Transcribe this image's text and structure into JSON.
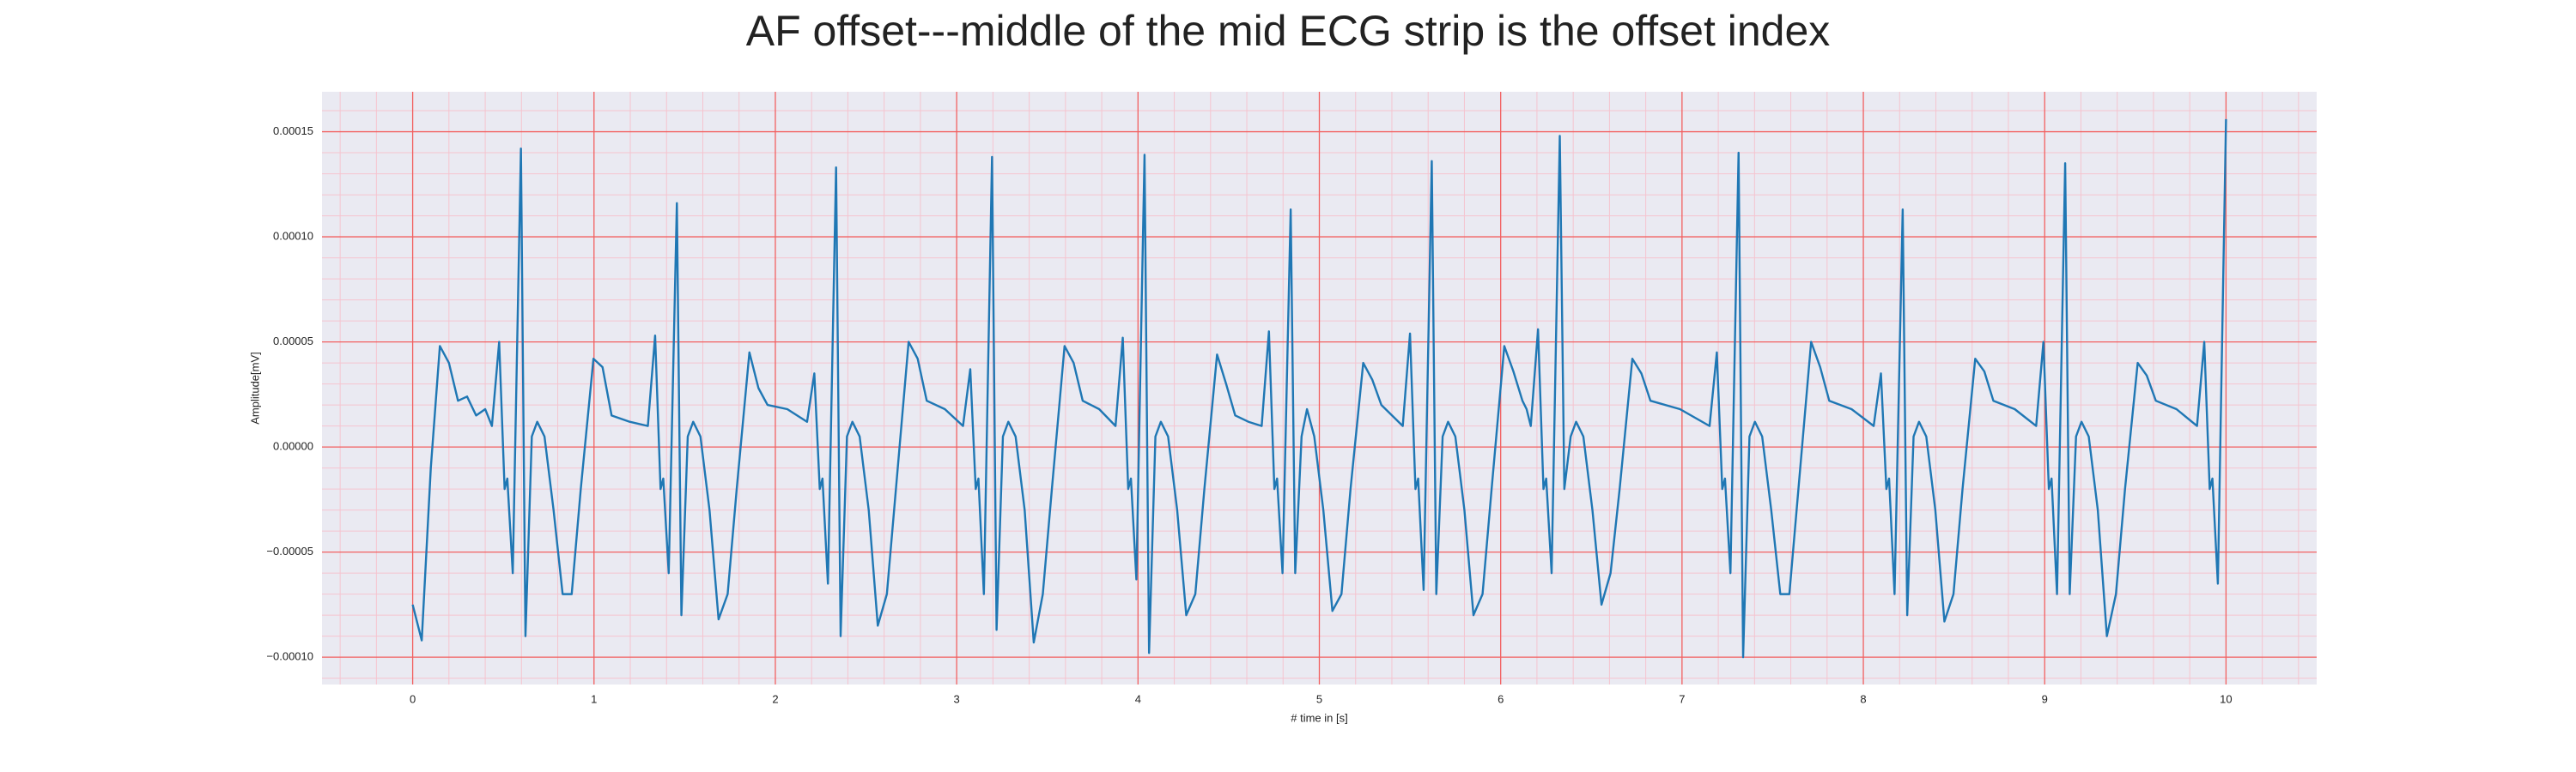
{
  "chart_data": {
    "type": "line",
    "title": "AF offset---middle of the mid ECG strip is the offset index",
    "xlabel": "# time in [s]",
    "ylabel": "Amplitude[mV]",
    "xlim": [
      -0.5,
      10.5
    ],
    "ylim": [
      -0.000113,
      0.000169
    ],
    "xticks": [
      0,
      1,
      2,
      3,
      4,
      5,
      6,
      7,
      8,
      9,
      10
    ],
    "yticks": [
      {
        "value": -0.0001,
        "label": "−0.00010"
      },
      {
        "value": -5e-05,
        "label": "−0.00005"
      },
      {
        "value": 0,
        "label": "0.00000"
      },
      {
        "value": 5e-05,
        "label": "0.00005"
      },
      {
        "value": 0.0001,
        "label": "0.00010"
      },
      {
        "value": 0.00015,
        "label": "0.00015"
      }
    ],
    "grid": true,
    "minor_grid": true,
    "grid_color": "#f26060",
    "minor_grid_color": "#f5c4cf",
    "background": "#eaeaf2",
    "x": [
      0,
      0.05,
      0.1,
      0.15,
      0.2,
      0.25,
      0.3,
      0.35,
      0.4,
      0.437,
      0.477,
      0.507,
      0.522,
      0.552,
      0.597,
      0.622,
      0.657,
      0.687,
      0.727,
      0.777,
      0.827,
      0.877,
      0.927,
      0.997,
      1.047,
      1.097,
      1.197,
      1.297,
      1.337,
      1.367,
      1.382,
      1.412,
      1.457,
      1.482,
      1.517,
      1.547,
      1.587,
      1.637,
      1.687,
      1.737,
      1.787,
      1.857,
      1.907,
      1.957,
      2.066,
      2.175,
      2.215,
      2.245,
      2.26,
      2.29,
      2.335,
      2.36,
      2.395,
      2.425,
      2.465,
      2.515,
      2.565,
      2.615,
      2.665,
      2.735,
      2.785,
      2.835,
      2.935,
      3.035,
      3.075,
      3.105,
      3.12,
      3.15,
      3.195,
      3.22,
      3.255,
      3.285,
      3.325,
      3.375,
      3.425,
      3.475,
      3.525,
      3.595,
      3.645,
      3.695,
      3.786,
      3.876,
      3.916,
      3.946,
      3.961,
      3.991,
      4.036,
      4.061,
      4.096,
      4.126,
      4.166,
      4.216,
      4.266,
      4.316,
      4.366,
      4.436,
      4.486,
      4.536,
      4.609,
      4.682,
      4.722,
      4.752,
      4.767,
      4.797,
      4.842,
      4.867,
      4.902,
      4.932,
      4.972,
      5.022,
      5.072,
      5.122,
      5.172,
      5.242,
      5.292,
      5.342,
      5.401,
      5.46,
      5.5,
      5.53,
      5.545,
      5.575,
      5.62,
      5.645,
      5.68,
      5.71,
      5.75,
      5.8,
      5.85,
      5.9,
      5.95,
      6.02,
      6.07,
      6.12,
      6.143,
      6.166,
      6.206,
      6.236,
      6.251,
      6.281,
      6.326,
      6.351,
      6.386,
      6.416,
      6.456,
      6.506,
      6.556,
      6.606,
      6.656,
      6.726,
      6.776,
      6.826,
      6.989,
      7.152,
      7.192,
      7.222,
      7.237,
      7.267,
      7.312,
      7.337,
      7.372,
      7.402,
      7.442,
      7.492,
      7.542,
      7.592,
      7.642,
      7.712,
      7.762,
      7.812,
      7.935,
      8.057,
      8.097,
      8.127,
      8.142,
      8.172,
      8.217,
      8.242,
      8.277,
      8.307,
      8.347,
      8.397,
      8.447,
      8.497,
      8.547,
      8.617,
      8.667,
      8.717,
      8.835,
      8.953,
      8.993,
      9.023,
      9.038,
      9.068,
      9.113,
      9.138,
      9.173,
      9.203,
      9.243,
      9.293,
      9.343,
      9.393,
      9.443,
      9.513,
      9.563,
      9.613,
      9.727,
      9.84,
      9.88,
      9.91,
      9.925,
      9.955,
      10.0
    ],
    "series": [
      {
        "name": "ECG",
        "color": "#1f77b4",
        "values": [
          -7.5e-05,
          -9.2e-05,
          -1e-05,
          4.8e-05,
          4e-05,
          2.2e-05,
          2.4e-05,
          1.5e-05,
          1.8e-05,
          1e-05,
          5e-05,
          -2e-05,
          -1.5e-05,
          -6e-05,
          0.000142,
          -9e-05,
          5e-06,
          1.2e-05,
          5e-06,
          -3e-05,
          -7e-05,
          -7e-05,
          -2e-05,
          4.2e-05,
          3.8e-05,
          1.5e-05,
          1.2e-05,
          1e-05,
          5.3e-05,
          -2e-05,
          -1.5e-05,
          -6e-05,
          0.000116,
          -8e-05,
          5e-06,
          1.2e-05,
          5e-06,
          -3e-05,
          -8.2e-05,
          -7e-05,
          -2e-05,
          4.5e-05,
          2.8e-05,
          2e-05,
          1.8e-05,
          1.2e-05,
          3.5e-05,
          -2e-05,
          -1.5e-05,
          -6.5e-05,
          0.000133,
          -9e-05,
          5e-06,
          1.2e-05,
          5e-06,
          -3e-05,
          -8.5e-05,
          -7e-05,
          -2e-05,
          5e-05,
          4.2e-05,
          2.2e-05,
          1.8e-05,
          1e-05,
          3.7e-05,
          -2e-05,
          -1.5e-05,
          -7e-05,
          0.000138,
          -8.7e-05,
          5e-06,
          1.2e-05,
          5e-06,
          -3e-05,
          -9.3e-05,
          -7e-05,
          -2e-05,
          4.8e-05,
          4e-05,
          2.2e-05,
          1.8e-05,
          1e-05,
          5.2e-05,
          -2e-05,
          -1.5e-05,
          -6.3e-05,
          0.000139,
          -9.8e-05,
          5e-06,
          1.2e-05,
          5e-06,
          -3e-05,
          -8e-05,
          -7e-05,
          -2e-05,
          4.4e-05,
          3e-05,
          1.5e-05,
          1.2e-05,
          1e-05,
          5.5e-05,
          -2e-05,
          -1.5e-05,
          -6e-05,
          0.000113,
          -6e-05,
          5e-06,
          1.8e-05,
          5e-06,
          -3e-05,
          -7.8e-05,
          -7e-05,
          -2e-05,
          4e-05,
          3.2e-05,
          2e-05,
          1.5e-05,
          1e-05,
          5.4e-05,
          -2e-05,
          -1.5e-05,
          -6.8e-05,
          0.000136,
          -7e-05,
          5e-06,
          1.2e-05,
          5e-06,
          -3e-05,
          -8e-05,
          -7e-05,
          -2e-05,
          4.8e-05,
          3.6e-05,
          2.2e-05,
          1.8e-05,
          1e-05,
          5.6e-05,
          -2e-05,
          -1.5e-05,
          -6e-05,
          0.000148,
          -2e-05,
          5e-06,
          1.2e-05,
          5e-06,
          -3e-05,
          -7.5e-05,
          -6e-05,
          -2e-05,
          4.2e-05,
          3.5e-05,
          2.2e-05,
          1.8e-05,
          1e-05,
          4.5e-05,
          -2e-05,
          -1.5e-05,
          -6e-05,
          0.00014,
          -0.0001,
          5e-06,
          1.2e-05,
          5e-06,
          -3e-05,
          -7e-05,
          -7e-05,
          -2e-05,
          5e-05,
          3.8e-05,
          2.2e-05,
          1.8e-05,
          1e-05,
          3.5e-05,
          -2e-05,
          -1.5e-05,
          -7e-05,
          0.000113,
          -8e-05,
          5e-06,
          1.2e-05,
          5e-06,
          -3e-05,
          -8.3e-05,
          -7e-05,
          -2e-05,
          4.2e-05,
          3.6e-05,
          2.2e-05,
          1.8e-05,
          1e-05,
          5e-05,
          -2e-05,
          -1.5e-05,
          -7e-05,
          0.000135,
          -7e-05,
          5e-06,
          1.2e-05,
          5e-06,
          -3e-05,
          -9e-05,
          -7e-05,
          -2e-05,
          4e-05,
          3.4e-05,
          2.2e-05,
          1.8e-05,
          1e-05,
          5e-05,
          -2e-05,
          -1.5e-05,
          -6.5e-05,
          0.000156
        ]
      }
    ]
  }
}
